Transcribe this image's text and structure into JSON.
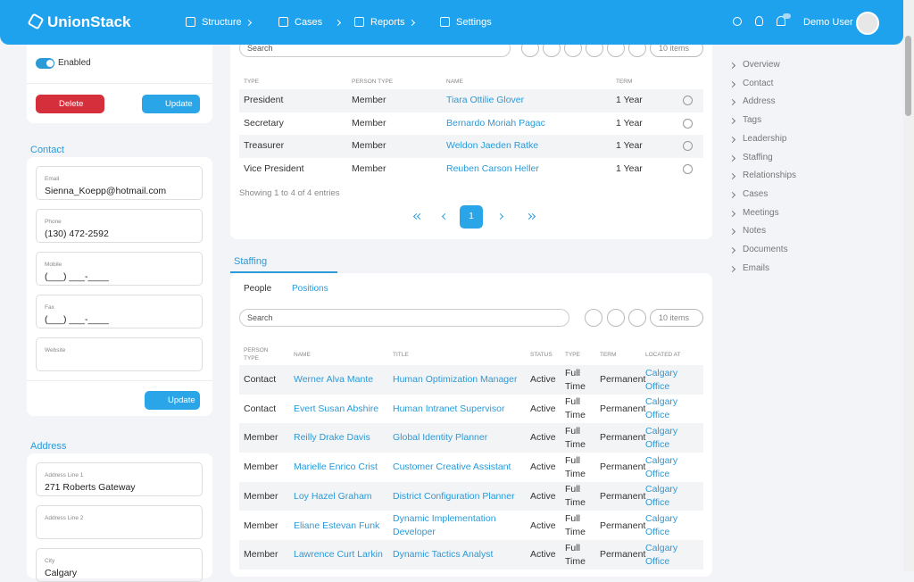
{
  "header": {
    "brand": "UnionStack",
    "nav": [
      "Structure",
      "Cases",
      "Reports",
      "Settings"
    ],
    "user": "Demo User"
  },
  "left": {
    "toggle_label": "Enabled",
    "delete_button": "Delete",
    "update_button": "Update",
    "contact": {
      "title": "Contact",
      "fields": [
        {
          "label": "Email",
          "value": "Sienna_Koepp@hotmail.com"
        },
        {
          "label": "Phone",
          "value": "(130) 472-2592"
        },
        {
          "label": "Mobile",
          "value": "(___) ___-____"
        },
        {
          "label": "Fax",
          "value": "(___) ___-____"
        },
        {
          "label": "Website"
        }
      ],
      "update_button": "Update"
    },
    "address": {
      "title": "Address",
      "fields": [
        {
          "label": "Address Line 1",
          "value": "271 Roberts Gateway"
        },
        {
          "label": "Address Line 2"
        },
        {
          "label": "City",
          "value": "Calgary"
        }
      ]
    }
  },
  "leadership": {
    "search": "Search",
    "page_size": "10 items",
    "columns": [
      "TYPE",
      "PERSON TYPE",
      "NAME",
      "TERM"
    ],
    "rows": [
      [
        "President",
        "Member",
        "Tiara Ottilie Glover",
        "1 Year"
      ],
      [
        "Secretary",
        "Member",
        "Bernardo Moriah Pagac",
        "1 Year"
      ],
      [
        "Treasurer",
        "Member",
        "Weldon Jaeden Ratke",
        "1 Year"
      ],
      [
        "Vice President",
        "Member",
        "Reuben Carson Heller",
        "1 Year"
      ]
    ],
    "footer": "Showing 1 to 4 of 4 entries",
    "page": 1
  },
  "staffing": {
    "title": "Staffing",
    "tabs": [
      "People",
      "Positions"
    ],
    "search": "Search",
    "page_size": "10 items",
    "columns": [
      "PERSON TYPE",
      "NAME",
      "TITLE",
      "STATUS",
      "TYPE",
      "TERM",
      "LOCATED AT"
    ],
    "rows": [
      [
        "Contact",
        "Werner Alva Mante",
        "Human Optimization Manager",
        "Active",
        "Full Time",
        "Permanent",
        "Calgary Office"
      ],
      [
        "Contact",
        "Evert Susan Abshire",
        "Human Intranet Supervisor",
        "Active",
        "Full Time",
        "Permanent",
        "Calgary Office"
      ],
      [
        "Member",
        "Reilly Drake Davis",
        "Global Identity Planner",
        "Active",
        "Full Time",
        "Permanent",
        "Calgary Office"
      ],
      [
        "Member",
        "Marielle Enrico Crist",
        "Customer Creative Assistant",
        "Active",
        "Full Time",
        "Permanent",
        "Calgary Office"
      ],
      [
        "Member",
        "Loy Hazel Graham",
        "District Configuration Planner",
        "Active",
        "Full Time",
        "Permanent",
        "Calgary Office"
      ],
      [
        "Member",
        "Eliane Estevan Funk",
        "Dynamic Implementation Developer",
        "Active",
        "Full Time",
        "Permanent",
        "Calgary Office"
      ],
      [
        "Member",
        "Lawrence Curt Larkin",
        "Dynamic Tactics Analyst",
        "Active",
        "Full Time",
        "Permanent",
        "Calgary Office"
      ]
    ]
  },
  "side_nav": [
    "Overview",
    "Contact",
    "Address",
    "Tags",
    "Leadership",
    "Staffing",
    "Relationships",
    "Cases",
    "Meetings",
    "Notes",
    "Documents",
    "Emails"
  ]
}
